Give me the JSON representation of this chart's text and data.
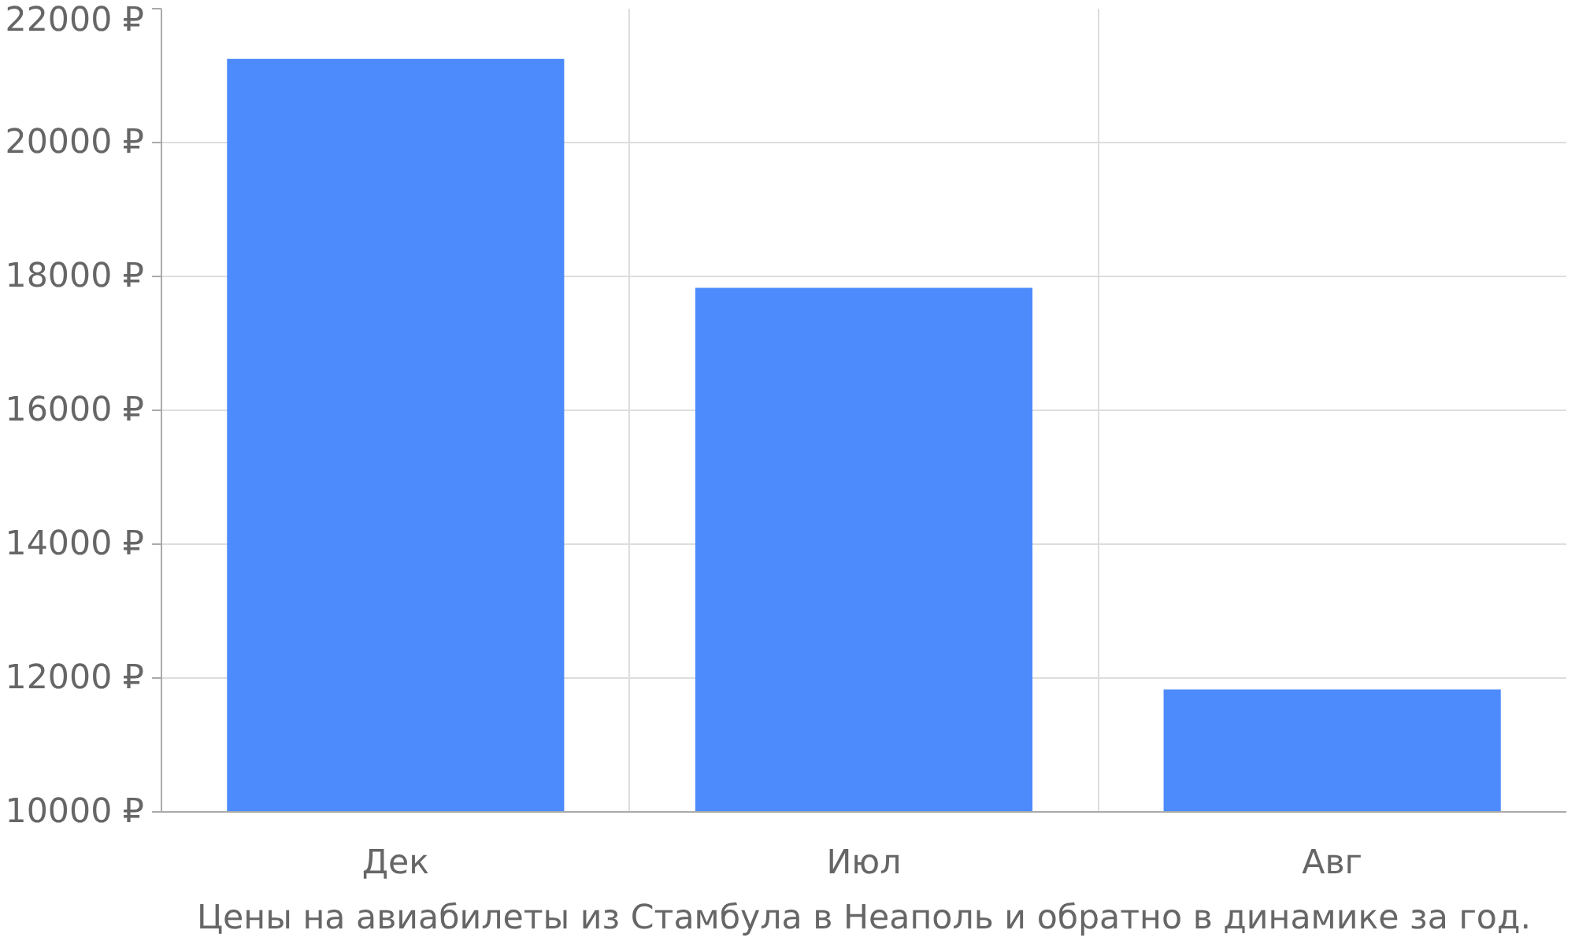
{
  "chart_data": {
    "type": "bar",
    "categories": [
      "Дек",
      "Июл",
      "Авг"
    ],
    "values": [
      21250,
      17830,
      11830
    ],
    "color": "#4d8afc",
    "ylim": [
      10000,
      22000
    ],
    "yticks": [
      {
        "value": 10000,
        "label": "10000 ₽"
      },
      {
        "value": 12000,
        "label": "12000 ₽"
      },
      {
        "value": 14000,
        "label": "14000 ₽"
      },
      {
        "value": 16000,
        "label": "16000 ₽"
      },
      {
        "value": 18000,
        "label": "18000 ₽"
      },
      {
        "value": 20000,
        "label": "20000 ₽"
      },
      {
        "value": 22000,
        "label": "22000 ₽"
      }
    ],
    "grid": true,
    "annotations": [
      "Цены на авиабилеты из Стамбула в Неаполь и обратно в динамике за год."
    ]
  }
}
